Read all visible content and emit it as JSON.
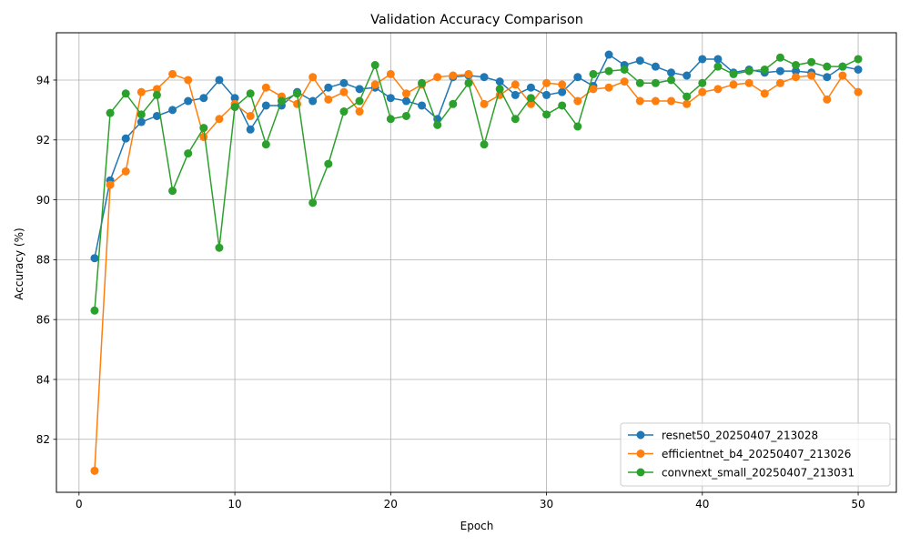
{
  "chart_data": {
    "type": "line",
    "title": "Validation Accuracy Comparison",
    "xlabel": "Epoch",
    "ylabel": "Accuracy (%)",
    "xlim": [
      -1.45,
      52.45
    ],
    "ylim": [
      80.23,
      95.58
    ],
    "xticks": [
      0,
      10,
      20,
      30,
      40,
      50
    ],
    "yticks": [
      82,
      84,
      86,
      88,
      90,
      92,
      94
    ],
    "grid": true,
    "legend_position": "lower-right",
    "x": [
      1,
      2,
      3,
      4,
      5,
      6,
      7,
      8,
      9,
      10,
      11,
      12,
      13,
      14,
      15,
      16,
      17,
      18,
      19,
      20,
      21,
      22,
      23,
      24,
      25,
      26,
      27,
      28,
      29,
      30,
      31,
      32,
      33,
      34,
      35,
      36,
      37,
      38,
      39,
      40,
      41,
      42,
      43,
      44,
      45,
      46,
      47,
      48,
      49,
      50
    ],
    "series": [
      {
        "name": "resnet50_20250407_213028",
        "color": "#1f77b4",
        "values": [
          88.05,
          90.65,
          92.05,
          92.6,
          92.8,
          93.0,
          93.3,
          93.4,
          94.0,
          93.4,
          92.35,
          93.15,
          93.15,
          93.6,
          93.3,
          93.75,
          93.9,
          93.7,
          93.75,
          93.4,
          93.3,
          93.15,
          92.7,
          94.1,
          94.15,
          94.1,
          93.95,
          93.5,
          93.75,
          93.5,
          93.6,
          94.1,
          93.8,
          94.85,
          94.5,
          94.65,
          94.45,
          94.25,
          94.15,
          94.7,
          94.7,
          94.25,
          94.35,
          94.25,
          94.3,
          94.3,
          94.25,
          94.1,
          94.45,
          94.35
        ]
      },
      {
        "name": "efficientnet_b4_20250407_213026",
        "color": "#ff7f0e",
        "values": [
          80.95,
          90.5,
          90.95,
          93.6,
          93.7,
          94.2,
          94.0,
          92.1,
          92.7,
          93.2,
          92.8,
          93.75,
          93.45,
          93.2,
          94.1,
          93.35,
          93.6,
          92.95,
          93.85,
          94.2,
          93.55,
          93.85,
          94.1,
          94.15,
          94.2,
          93.2,
          93.5,
          93.85,
          93.2,
          93.9,
          93.85,
          93.3,
          93.7,
          93.75,
          93.95,
          93.3,
          93.3,
          93.3,
          93.2,
          93.6,
          93.7,
          93.85,
          93.9,
          93.55,
          93.9,
          94.1,
          94.15,
          93.35,
          94.15,
          93.6
        ]
      },
      {
        "name": "convnext_small_20250407_213031",
        "color": "#2ca02c",
        "values": [
          86.3,
          92.9,
          93.55,
          92.85,
          93.5,
          90.3,
          91.55,
          92.4,
          88.4,
          93.1,
          93.55,
          91.85,
          93.3,
          93.55,
          89.9,
          91.2,
          92.95,
          93.3,
          94.5,
          92.7,
          92.8,
          93.9,
          92.5,
          93.2,
          93.9,
          91.85,
          93.7,
          92.7,
          93.4,
          92.85,
          93.15,
          92.45,
          94.2,
          94.3,
          94.35,
          93.9,
          93.9,
          94.0,
          93.45,
          93.9,
          94.45,
          94.2,
          94.3,
          94.35,
          94.75,
          94.5,
          94.6,
          94.45,
          94.45,
          94.7
        ]
      }
    ]
  }
}
